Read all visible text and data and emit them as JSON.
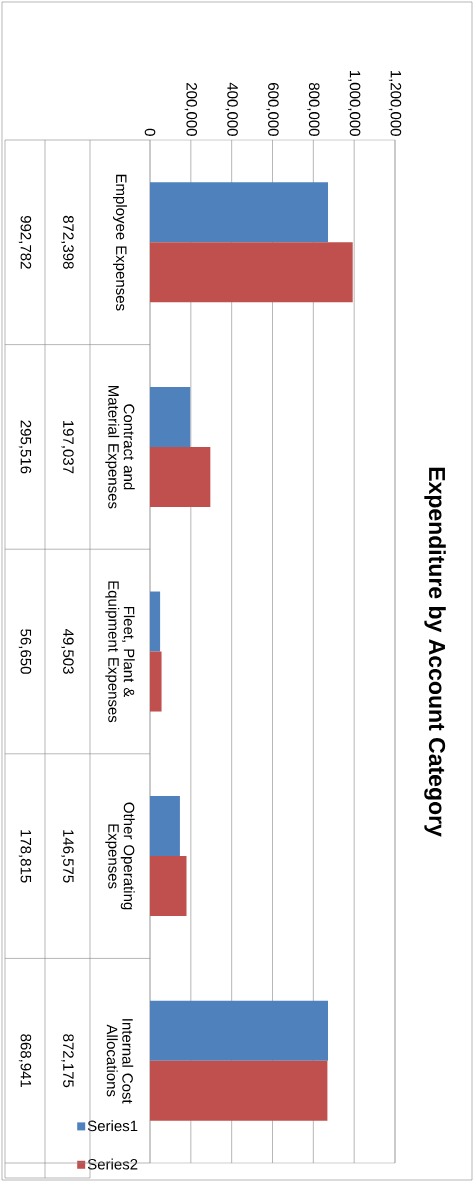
{
  "chart_data": {
    "type": "bar",
    "orientation": "horizontal",
    "title": "Expenditure by Account Category",
    "categories": [
      "Employee Expenses",
      "Contract and Material Expenses",
      "Fleet, Plant & Equipment Expenses",
      "Other Operating Expenses",
      "Internal Cost Allocations"
    ],
    "series": [
      {
        "name": "Series1",
        "color": "#4f81bd",
        "values": [
          872398,
          197037,
          49503,
          146575,
          872175
        ],
        "value_labels": [
          "872,398",
          "197,037",
          "49,503",
          "146,575",
          "872,175"
        ]
      },
      {
        "name": "Series2",
        "color": "#c0504d",
        "values": [
          992782,
          295516,
          56650,
          178815,
          868941
        ],
        "value_labels": [
          "992,782",
          "295,516",
          "56,650",
          "178,815",
          "868,941"
        ]
      }
    ],
    "xlim": [
      0,
      1200000
    ],
    "xticks": [
      0,
      {
        "value": 200000,
        "label": "200,000"
      },
      {
        "value": 400000,
        "label": "400,000"
      },
      {
        "value": 600000,
        "label": "600,000"
      },
      {
        "value": 800000,
        "label": "800,000"
      },
      {
        "value": 1000000,
        "label": "1,000,000"
      },
      {
        "value": 1200000,
        "label": "1,200,000"
      }
    ],
    "grid": "x",
    "legend": "bottom"
  }
}
